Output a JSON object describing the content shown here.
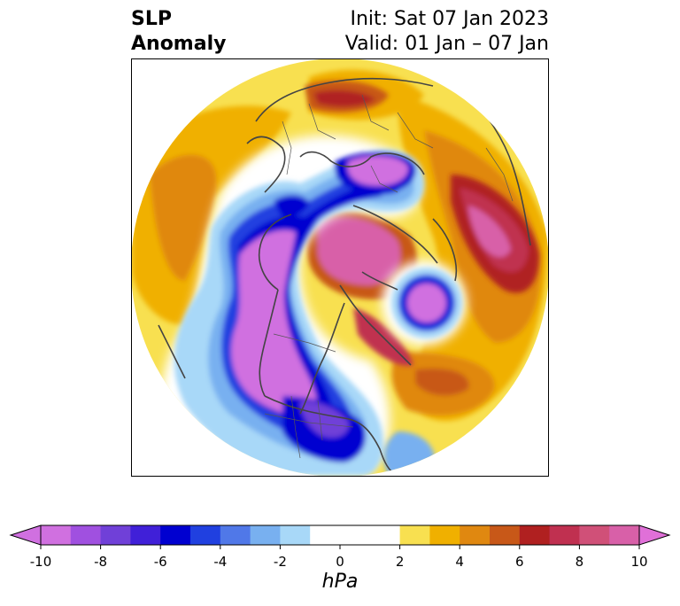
{
  "title": {
    "left_line1": "SLP",
    "left_line2": "Anomaly",
    "right_line1": "Init: Sat 07 Jan 2023",
    "right_line2": "Valid: 01 Jan – 07 Jan"
  },
  "map": {
    "projection": "north polar stereographic",
    "field": "sea level pressure anomaly"
  },
  "colorbar": {
    "units": "hPa",
    "extend": "both",
    "ticks": [
      "-10",
      "-8",
      "-6",
      "-4",
      "-2",
      "0",
      "2",
      "4",
      "6",
      "8",
      "10"
    ],
    "tick_values": [
      -10,
      -8,
      -6,
      -4,
      -2,
      0,
      2,
      4,
      6,
      8,
      10
    ],
    "levels": [
      -10,
      -9,
      -8,
      -7,
      -6,
      -5,
      -4,
      -3,
      -2,
      -1,
      1,
      2,
      3,
      4,
      5,
      6,
      7,
      8,
      9,
      10
    ],
    "colors": [
      "#d070e0",
      "#a050e0",
      "#7040d8",
      "#4020d8",
      "#0000d0",
      "#2040e0",
      "#5078e8",
      "#78b0f0",
      "#a8d8f8",
      "#ffffff",
      "#ffffff",
      "#f8e050",
      "#f0b000",
      "#e08810",
      "#c85818",
      "#b02020",
      "#c03050",
      "#d05078",
      "#d860a8",
      "#e070d0"
    ],
    "under_color": "#d070e0",
    "over_color": "#e070d8"
  }
}
